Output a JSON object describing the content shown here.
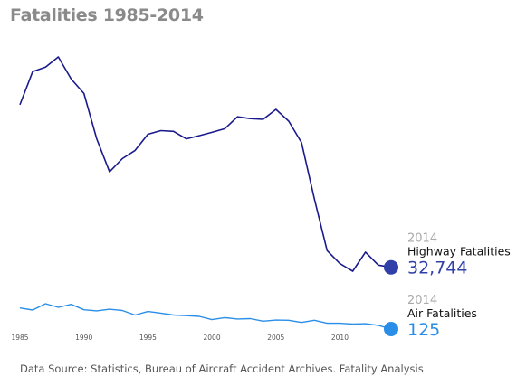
{
  "chart_data": {
    "type": "line",
    "title": "Fatalities 1985-2014",
    "x": [
      1985,
      1986,
      1987,
      1988,
      1989,
      1990,
      1991,
      1992,
      1993,
      1994,
      1995,
      1996,
      1997,
      1998,
      1999,
      2000,
      2001,
      2002,
      2003,
      2004,
      2005,
      2006,
      2007,
      2008,
      2009,
      2010,
      2011,
      2012,
      2013,
      2014
    ],
    "x_ticks": [
      "1985",
      "1990",
      "1995",
      "2000",
      "2005",
      "2010"
    ],
    "xlim": [
      1985,
      2014
    ],
    "grid": false,
    "legend": "none",
    "series": [
      {
        "name": "Highway Fatalities",
        "color": "#1a1a8c",
        "marker_color": "#3040a8",
        "end_year_label": "2014",
        "end_value_label": "32,744",
        "values": [
          43825,
          46087,
          46390,
          47087,
          45582,
          44599,
          41508,
          39250,
          40150,
          40716,
          41817,
          42065,
          42013,
          41501,
          41717,
          41945,
          42196,
          43005,
          42884,
          42836,
          43510,
          42708,
          41259,
          37423,
          33883,
          32999,
          32479,
          33782,
          32894,
          32744
        ]
      },
      {
        "name": "Air Fatalities",
        "color": "#2a8ee8",
        "marker_color": "#2a8ee8",
        "end_year_label": "2014",
        "end_value_label": "125",
        "values": [
          1450,
          1320,
          1720,
          1490,
          1680,
          1340,
          1270,
          1370,
          1290,
          1010,
          1230,
          1130,
          1010,
          970,
          920,
          720,
          840,
          760,
          780,
          620,
          690,
          680,
          540,
          680,
          490,
          490,
          440,
          460,
          360,
          125
        ]
      }
    ],
    "source_note": "Data Source: Statistics, Bureau of Aircraft Accident Archives. Fatality Analysis"
  }
}
